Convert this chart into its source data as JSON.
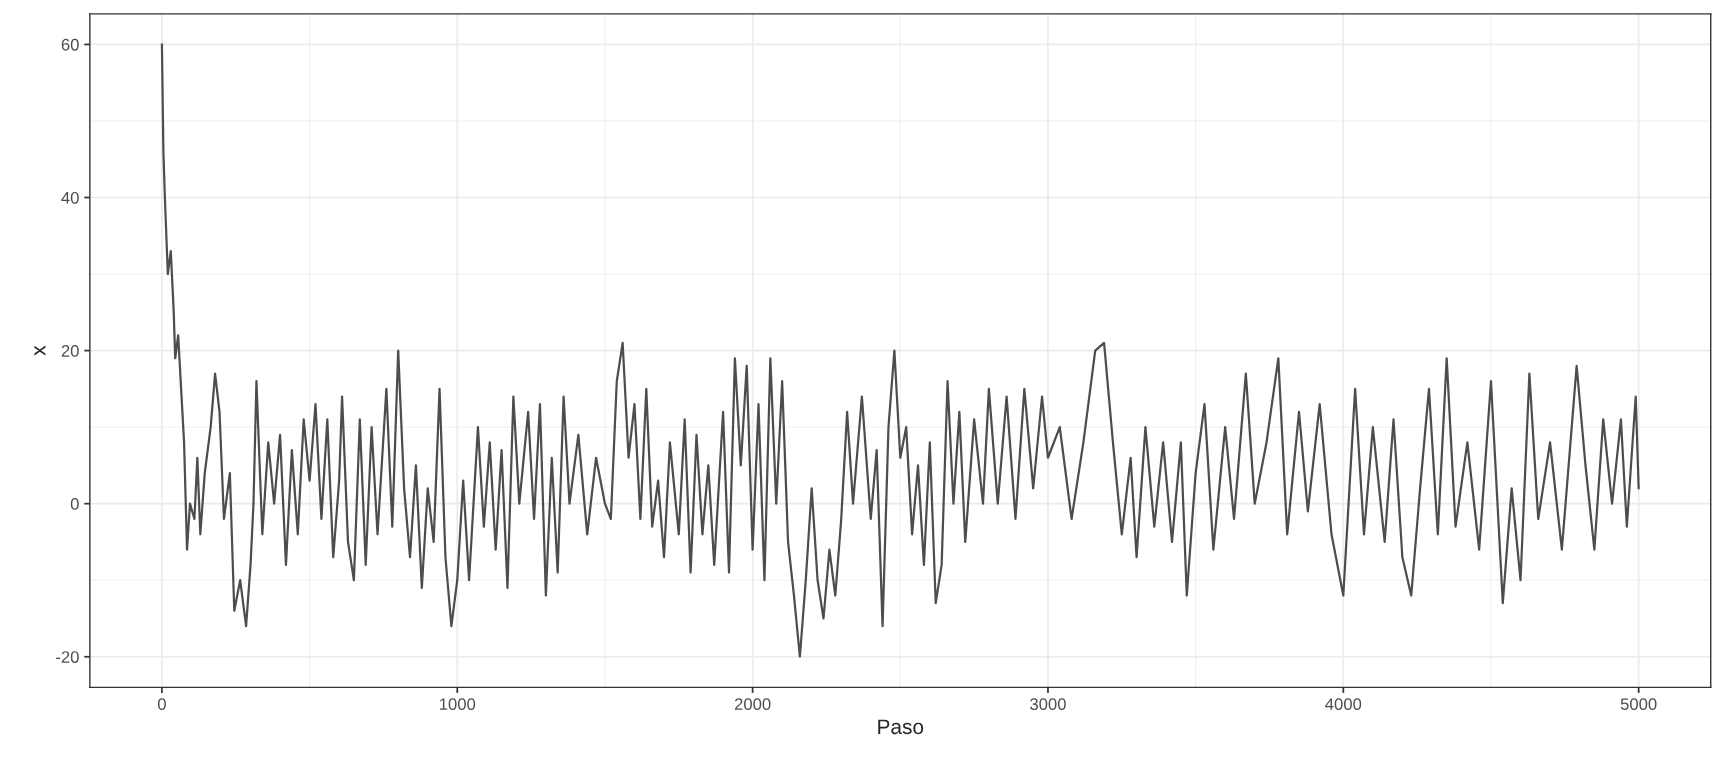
{
  "chart_data": {
    "type": "line",
    "xlabel": "Paso",
    "ylabel": "x",
    "xlim": [
      -244,
      5244
    ],
    "ylim": [
      -24,
      64
    ],
    "xticks": [
      0,
      1000,
      2000,
      3000,
      4000,
      5000
    ],
    "yticks": [
      {
        "value": -20,
        "label": "-20"
      },
      0,
      20,
      40,
      60
    ],
    "grid": true,
    "marker": "none",
    "line_style": "solid",
    "series": [
      {
        "color": "#4d4d4d",
        "x": [
          0,
          5,
          10,
          20,
          30,
          40,
          45,
          55,
          65,
          75,
          85,
          95,
          110,
          120,
          130,
          145,
          165,
          180,
          195,
          210,
          230,
          245,
          265,
          285,
          300,
          310,
          320,
          340,
          360,
          380,
          400,
          420,
          440,
          460,
          480,
          500,
          520,
          540,
          560,
          580,
          600,
          610,
          630,
          650,
          670,
          690,
          710,
          730,
          760,
          780,
          800,
          820,
          840,
          860,
          880,
          900,
          920,
          940,
          960,
          980,
          1000,
          1020,
          1040,
          1070,
          1090,
          1110,
          1130,
          1150,
          1170,
          1190,
          1210,
          1240,
          1260,
          1280,
          1300,
          1320,
          1340,
          1360,
          1380,
          1410,
          1440,
          1470,
          1500,
          1520,
          1540,
          1560,
          1580,
          1600,
          1620,
          1640,
          1660,
          1680,
          1700,
          1720,
          1750,
          1770,
          1790,
          1810,
          1830,
          1850,
          1870,
          1900,
          1920,
          1940,
          1960,
          1980,
          2000,
          2020,
          2040,
          2060,
          2080,
          2100,
          2120,
          2140,
          2160,
          2180,
          2200,
          2220,
          2240,
          2260,
          2280,
          2300,
          2320,
          2340,
          2370,
          2400,
          2420,
          2440,
          2460,
          2480,
          2500,
          2520,
          2540,
          2560,
          2580,
          2600,
          2620,
          2640,
          2660,
          2680,
          2700,
          2720,
          2750,
          2780,
          2800,
          2830,
          2860,
          2890,
          2920,
          2950,
          2980,
          3000,
          3040,
          3080,
          3120,
          3160,
          3190,
          3220,
          3250,
          3280,
          3300,
          3330,
          3360,
          3390,
          3420,
          3450,
          3470,
          3500,
          3530,
          3560,
          3600,
          3630,
          3670,
          3700,
          3740,
          3780,
          3810,
          3850,
          3880,
          3920,
          3960,
          4000,
          4040,
          4070,
          4100,
          4140,
          4170,
          4200,
          4230,
          4260,
          4290,
          4320,
          4350,
          4380,
          4420,
          4460,
          4500,
          4540,
          4570,
          4600,
          4630,
          4660,
          4700,
          4740,
          4790,
          4820,
          4850,
          4880,
          4910,
          4940,
          4960,
          4990,
          5000
        ],
        "values": [
          60,
          46,
          40,
          30,
          33,
          25,
          19,
          22,
          15,
          8,
          -6,
          0,
          -2,
          6,
          -4,
          4,
          10,
          17,
          12,
          -2,
          4,
          -14,
          -10,
          -16,
          -8,
          0,
          16,
          -4,
          8,
          0,
          9,
          -8,
          7,
          -4,
          11,
          3,
          13,
          -2,
          11,
          -7,
          3,
          14,
          -5,
          -10,
          11,
          -8,
          10,
          -4,
          15,
          -3,
          20,
          2,
          -7,
          5,
          -11,
          2,
          -5,
          15,
          -7,
          -16,
          -10,
          3,
          -10,
          10,
          -3,
          8,
          -6,
          7,
          -11,
          14,
          0,
          12,
          -2,
          13,
          -12,
          6,
          -9,
          14,
          0,
          9,
          -4,
          6,
          0,
          -2,
          16,
          21,
          6,
          13,
          -2,
          15,
          -3,
          3,
          -7,
          8,
          -4,
          11,
          -9,
          9,
          -4,
          5,
          -8,
          12,
          -9,
          19,
          5,
          18,
          -6,
          13,
          -10,
          19,
          0,
          16,
          -5,
          -12,
          -20,
          -10,
          2,
          -10,
          -15,
          -6,
          -12,
          -2,
          12,
          0,
          14,
          -2,
          7,
          -16,
          10,
          20,
          6,
          10,
          -4,
          5,
          -8,
          8,
          -13,
          -8,
          16,
          0,
          12,
          -5,
          11,
          0,
          15,
          0,
          14,
          -2,
          15,
          2,
          14,
          6,
          10,
          -2,
          8,
          20,
          21,
          8,
          -4,
          6,
          -7,
          10,
          -3,
          8,
          -5,
          8,
          -12,
          4,
          13,
          -6,
          10,
          -2,
          17,
          0,
          8,
          19,
          -4,
          12,
          -1,
          13,
          -4,
          -12,
          15,
          -4,
          10,
          -5,
          11,
          -7,
          -12,
          2,
          15,
          -4,
          19,
          -3,
          8,
          -6,
          16,
          -13,
          2,
          -10,
          17,
          -2,
          8,
          -6,
          18,
          5,
          -6,
          11,
          0,
          11,
          -3,
          14,
          2
        ]
      }
    ]
  }
}
